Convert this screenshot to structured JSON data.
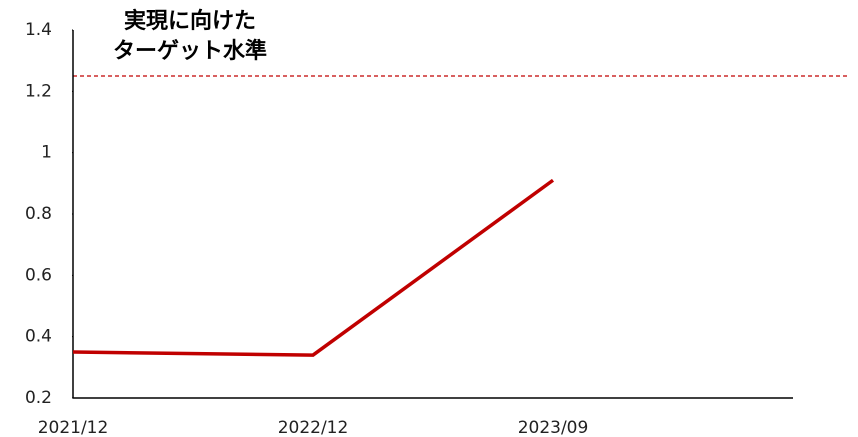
{
  "chart_data": {
    "type": "line",
    "categories": [
      "2021/12",
      "2022/12",
      "2023/09",
      null
    ],
    "series": [
      {
        "color": "#c00000",
        "values": [
          0.35,
          0.34,
          0.91,
          null
        ]
      }
    ],
    "ylim": [
      0.2,
      1.4
    ],
    "yticks": [
      0.2,
      0.4,
      0.6,
      0.8,
      1,
      1.2,
      1.4
    ],
    "grid": false,
    "target": {
      "value": 1.25,
      "color": "#c00000",
      "label": [
        "実現に向けた",
        "ターゲット水準"
      ]
    }
  }
}
